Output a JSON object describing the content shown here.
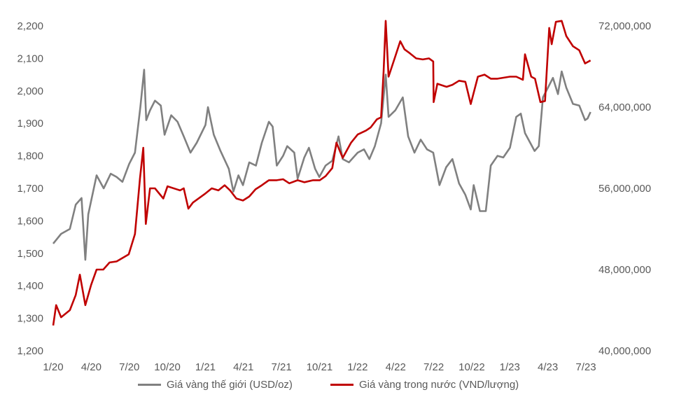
{
  "chart_data": {
    "type": "line",
    "x_ticks": [
      "1/20",
      "4/20",
      "7/20",
      "10/20",
      "1/21",
      "4/21",
      "7/21",
      "10/21",
      "1/22",
      "4/22",
      "7/22",
      "10/22",
      "1/23",
      "4/23",
      "7/23"
    ],
    "y_left": {
      "ticks": [
        "1,200",
        "1,300",
        "1,400",
        "1,500",
        "1,600",
        "1,700",
        "1,800",
        "1,900",
        "2,000",
        "2,100",
        "2,200"
      ],
      "min": 1200,
      "max": 2200
    },
    "y_right": {
      "ticks": [
        "40,000,000",
        "48,000,000",
        "56,000,000",
        "64,000,000",
        "72,000,000"
      ],
      "min": 40000000,
      "max": 72000000
    },
    "series": [
      {
        "name": "Giá vàng thế giới (USD/oz)",
        "axis": "left",
        "color": "#808080",
        "points": [
          [
            "2020-01-01",
            1530
          ],
          [
            "2020-01-20",
            1560
          ],
          [
            "2020-02-10",
            1575
          ],
          [
            "2020-02-24",
            1650
          ],
          [
            "2020-03-09",
            1670
          ],
          [
            "2020-03-18",
            1480
          ],
          [
            "2020-03-25",
            1620
          ],
          [
            "2020-04-14",
            1740
          ],
          [
            "2020-05-01",
            1700
          ],
          [
            "2020-05-18",
            1745
          ],
          [
            "2020-06-01",
            1735
          ],
          [
            "2020-06-15",
            1720
          ],
          [
            "2020-07-01",
            1775
          ],
          [
            "2020-07-15",
            1810
          ],
          [
            "2020-07-28",
            1950
          ],
          [
            "2020-08-06",
            2065
          ],
          [
            "2020-08-11",
            1910
          ],
          [
            "2020-08-20",
            1940
          ],
          [
            "2020-09-01",
            1970
          ],
          [
            "2020-09-15",
            1955
          ],
          [
            "2020-09-24",
            1865
          ],
          [
            "2020-10-10",
            1925
          ],
          [
            "2020-10-25",
            1905
          ],
          [
            "2020-11-09",
            1860
          ],
          [
            "2020-11-25",
            1810
          ],
          [
            "2020-12-10",
            1840
          ],
          [
            "2020-12-31",
            1895
          ],
          [
            "2021-01-06",
            1950
          ],
          [
            "2021-01-20",
            1865
          ],
          [
            "2021-02-05",
            1815
          ],
          [
            "2021-02-25",
            1760
          ],
          [
            "2021-03-08",
            1690
          ],
          [
            "2021-03-20",
            1740
          ],
          [
            "2021-03-31",
            1710
          ],
          [
            "2021-04-15",
            1780
          ],
          [
            "2021-05-01",
            1770
          ],
          [
            "2021-05-15",
            1840
          ],
          [
            "2021-06-01",
            1905
          ],
          [
            "2021-06-10",
            1890
          ],
          [
            "2021-06-20",
            1770
          ],
          [
            "2021-07-05",
            1800
          ],
          [
            "2021-07-15",
            1830
          ],
          [
            "2021-08-01",
            1810
          ],
          [
            "2021-08-09",
            1730
          ],
          [
            "2021-08-25",
            1795
          ],
          [
            "2021-09-05",
            1825
          ],
          [
            "2021-09-20",
            1760
          ],
          [
            "2021-09-30",
            1735
          ],
          [
            "2021-10-15",
            1770
          ],
          [
            "2021-10-31",
            1785
          ],
          [
            "2021-11-15",
            1860
          ],
          [
            "2021-11-25",
            1790
          ],
          [
            "2021-12-10",
            1780
          ],
          [
            "2021-12-31",
            1810
          ],
          [
            "2022-01-15",
            1820
          ],
          [
            "2022-01-28",
            1790
          ],
          [
            "2022-02-10",
            1830
          ],
          [
            "2022-02-25",
            1900
          ],
          [
            "2022-03-08",
            2050
          ],
          [
            "2022-03-15",
            1920
          ],
          [
            "2022-03-31",
            1940
          ],
          [
            "2022-04-18",
            1980
          ],
          [
            "2022-05-01",
            1860
          ],
          [
            "2022-05-16",
            1810
          ],
          [
            "2022-05-31",
            1850
          ],
          [
            "2022-06-15",
            1820
          ],
          [
            "2022-06-30",
            1810
          ],
          [
            "2022-07-15",
            1710
          ],
          [
            "2022-07-31",
            1765
          ],
          [
            "2022-08-15",
            1790
          ],
          [
            "2022-08-31",
            1715
          ],
          [
            "2022-09-15",
            1680
          ],
          [
            "2022-09-28",
            1635
          ],
          [
            "2022-10-05",
            1710
          ],
          [
            "2022-10-20",
            1630
          ],
          [
            "2022-11-03",
            1630
          ],
          [
            "2022-11-15",
            1770
          ],
          [
            "2022-12-01",
            1800
          ],
          [
            "2022-12-15",
            1795
          ],
          [
            "2022-12-31",
            1825
          ],
          [
            "2023-01-15",
            1920
          ],
          [
            "2023-01-26",
            1930
          ],
          [
            "2023-02-05",
            1870
          ],
          [
            "2023-02-28",
            1815
          ],
          [
            "2023-03-10",
            1830
          ],
          [
            "2023-03-20",
            1980
          ],
          [
            "2023-04-05",
            2020
          ],
          [
            "2023-04-13",
            2040
          ],
          [
            "2023-04-25",
            1990
          ],
          [
            "2023-05-04",
            2060
          ],
          [
            "2023-05-15",
            2010
          ],
          [
            "2023-05-31",
            1960
          ],
          [
            "2023-06-15",
            1955
          ],
          [
            "2023-06-29",
            1910
          ],
          [
            "2023-07-05",
            1915
          ],
          [
            "2023-07-12",
            1935
          ]
        ]
      },
      {
        "name": "Giá vàng trong nước (VND/lượng)",
        "axis": "right",
        "color": "#c00000",
        "points": [
          [
            "2020-01-01",
            42500000
          ],
          [
            "2020-01-08",
            44500000
          ],
          [
            "2020-01-20",
            43300000
          ],
          [
            "2020-02-10",
            44000000
          ],
          [
            "2020-02-24",
            45500000
          ],
          [
            "2020-03-05",
            47500000
          ],
          [
            "2020-03-18",
            44500000
          ],
          [
            "2020-04-01",
            46500000
          ],
          [
            "2020-04-14",
            48000000
          ],
          [
            "2020-04-30",
            48000000
          ],
          [
            "2020-05-15",
            48700000
          ],
          [
            "2020-06-01",
            48800000
          ],
          [
            "2020-06-30",
            49500000
          ],
          [
            "2020-07-15",
            51500000
          ],
          [
            "2020-07-27",
            57000000
          ],
          [
            "2020-08-04",
            60000000
          ],
          [
            "2020-08-10",
            52500000
          ],
          [
            "2020-08-20",
            56000000
          ],
          [
            "2020-09-01",
            56000000
          ],
          [
            "2020-09-21",
            55000000
          ],
          [
            "2020-10-01",
            56200000
          ],
          [
            "2020-10-31",
            55800000
          ],
          [
            "2020-11-09",
            56000000
          ],
          [
            "2020-11-20",
            54000000
          ],
          [
            "2020-12-01",
            54600000
          ],
          [
            "2020-12-31",
            55500000
          ],
          [
            "2021-01-15",
            56000000
          ],
          [
            "2021-01-31",
            55800000
          ],
          [
            "2021-02-15",
            56300000
          ],
          [
            "2021-02-28",
            55800000
          ],
          [
            "2021-03-15",
            55000000
          ],
          [
            "2021-03-31",
            54800000
          ],
          [
            "2021-04-15",
            55200000
          ],
          [
            "2021-04-30",
            55900000
          ],
          [
            "2021-05-15",
            56300000
          ],
          [
            "2021-06-01",
            56800000
          ],
          [
            "2021-06-20",
            56800000
          ],
          [
            "2021-07-05",
            56900000
          ],
          [
            "2021-07-20",
            56500000
          ],
          [
            "2021-08-09",
            56800000
          ],
          [
            "2021-08-25",
            56600000
          ],
          [
            "2021-09-15",
            56800000
          ],
          [
            "2021-10-01",
            56800000
          ],
          [
            "2021-10-15",
            57200000
          ],
          [
            "2021-10-31",
            58000000
          ],
          [
            "2021-11-10",
            60500000
          ],
          [
            "2021-11-25",
            59000000
          ],
          [
            "2021-12-15",
            60500000
          ],
          [
            "2021-12-31",
            61300000
          ],
          [
            "2022-01-20",
            61700000
          ],
          [
            "2022-01-31",
            62000000
          ],
          [
            "2022-02-15",
            62800000
          ],
          [
            "2022-02-25",
            63000000
          ],
          [
            "2022-03-03",
            67500000
          ],
          [
            "2022-03-08",
            72500000
          ],
          [
            "2022-03-15",
            67000000
          ],
          [
            "2022-03-31",
            69000000
          ],
          [
            "2022-04-12",
            70500000
          ],
          [
            "2022-04-22",
            69700000
          ],
          [
            "2022-05-05",
            69300000
          ],
          [
            "2022-05-20",
            68800000
          ],
          [
            "2022-06-05",
            68700000
          ],
          [
            "2022-06-20",
            68800000
          ],
          [
            "2022-06-30",
            68500000
          ],
          [
            "2022-07-01",
            64500000
          ],
          [
            "2022-07-10",
            66300000
          ],
          [
            "2022-08-01",
            66000000
          ],
          [
            "2022-08-15",
            66200000
          ],
          [
            "2022-08-31",
            66600000
          ],
          [
            "2022-09-15",
            66500000
          ],
          [
            "2022-09-28",
            64300000
          ],
          [
            "2022-10-15",
            67000000
          ],
          [
            "2022-10-31",
            67200000
          ],
          [
            "2022-11-15",
            66800000
          ],
          [
            "2022-12-01",
            66800000
          ],
          [
            "2022-12-31",
            67000000
          ],
          [
            "2023-01-15",
            67000000
          ],
          [
            "2023-01-31",
            66700000
          ],
          [
            "2023-02-05",
            69200000
          ],
          [
            "2023-02-20",
            67000000
          ],
          [
            "2023-03-01",
            66800000
          ],
          [
            "2023-03-14",
            64500000
          ],
          [
            "2023-03-25",
            64600000
          ],
          [
            "2023-04-04",
            71800000
          ],
          [
            "2023-04-10",
            70200000
          ],
          [
            "2023-04-20",
            72400000
          ],
          [
            "2023-05-04",
            72500000
          ],
          [
            "2023-05-15",
            71000000
          ],
          [
            "2023-05-31",
            70000000
          ],
          [
            "2023-06-15",
            69600000
          ],
          [
            "2023-06-29",
            68300000
          ],
          [
            "2023-07-12",
            68600000
          ]
        ]
      }
    ]
  }
}
